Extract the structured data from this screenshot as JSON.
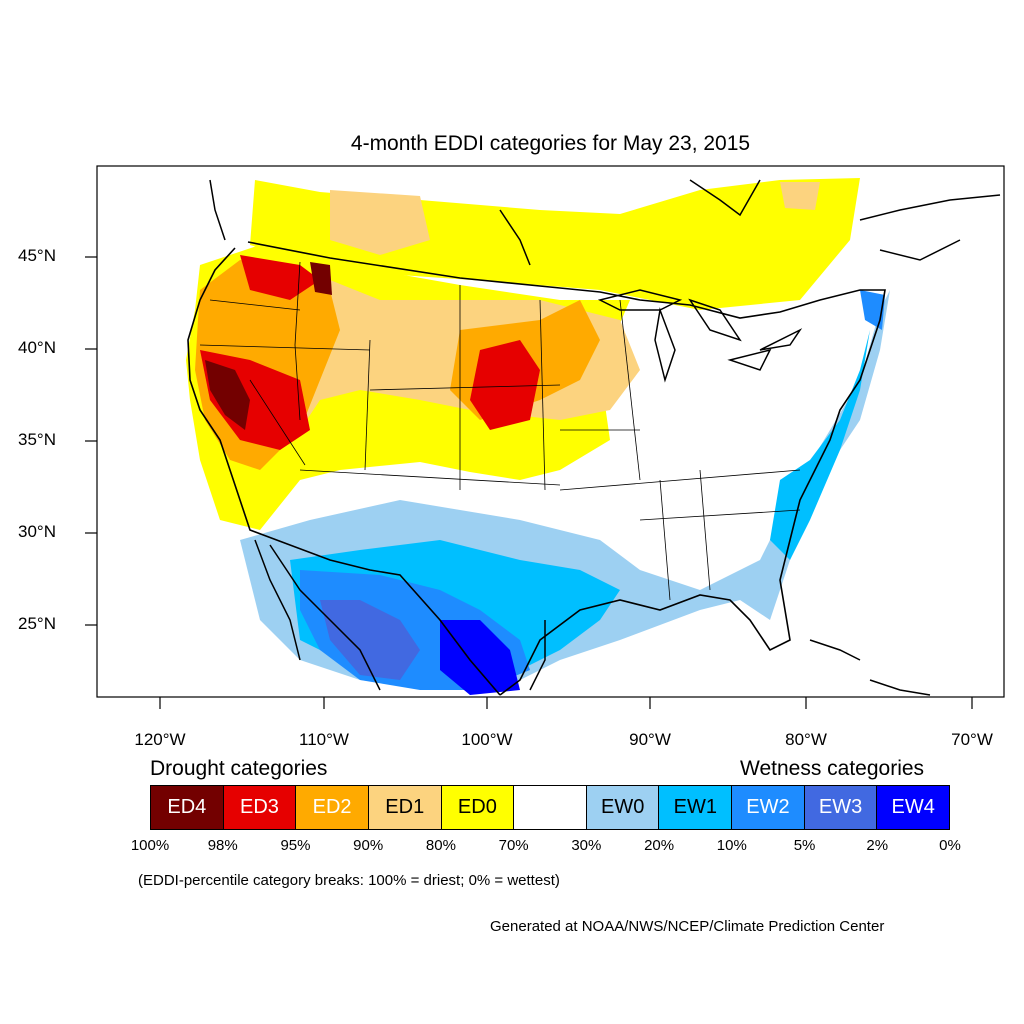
{
  "title": "4-month EDDI categories for May 23, 2015",
  "lat_labels": [
    "45°N",
    "40°N",
    "35°N",
    "30°N",
    "25°N"
  ],
  "lon_labels": [
    "120°W",
    "110°W",
    "100°W",
    "90°W",
    "80°W",
    "70°W"
  ],
  "legend": {
    "drought_heading": "Drought categories",
    "wetness_heading": "Wetness categories",
    "categories": [
      {
        "label": "ED4",
        "color": "#730000",
        "text_color": "#ffffff"
      },
      {
        "label": "ED3",
        "color": "#e60000",
        "text_color": "#ffffff"
      },
      {
        "label": "ED2",
        "color": "#ffaa00",
        "text_color": "#ffffff"
      },
      {
        "label": "ED1",
        "color": "#fcd37f",
        "text_color": "#000000"
      },
      {
        "label": "ED0",
        "color": "#ffff00",
        "text_color": "#000000"
      },
      {
        "label": "",
        "color": "#ffffff",
        "text_color": "#000000"
      },
      {
        "label": "EW0",
        "color": "#9dd0f2",
        "text_color": "#000000"
      },
      {
        "label": "EW1",
        "color": "#00bfff",
        "text_color": "#000000"
      },
      {
        "label": "EW2",
        "color": "#1e8cff",
        "text_color": "#ffffff"
      },
      {
        "label": "EW3",
        "color": "#4169e1",
        "text_color": "#ffffff"
      },
      {
        "label": "EW4",
        "color": "#0000ff",
        "text_color": "#ffffff"
      }
    ],
    "breaks": [
      "100%",
      "98%",
      "95%",
      "90%",
      "80%",
      "70%",
      "30%",
      "20%",
      "10%",
      "5%",
      "2%",
      "0%"
    ]
  },
  "note": "(EDDI-percentile category breaks: 100% = driest; 0% = wettest)",
  "credit": "Generated at NOAA/NWS/NCEP/Climate Prediction Center"
}
